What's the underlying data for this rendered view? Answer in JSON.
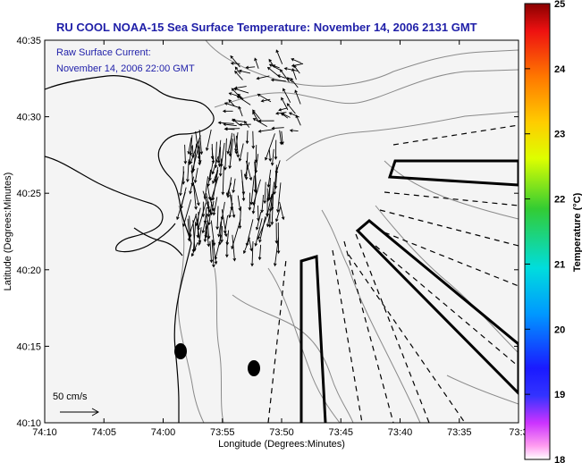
{
  "title": "RU COOL  NOAA-15  Sea Surface Temperature:  November 14, 2006 2131 GMT",
  "inset": {
    "line1": "Raw Surface Current:",
    "line2": "November 14, 2006 22:00 GMT"
  },
  "scale_label": "50 cm/s",
  "colorbar": {
    "label": "Temperature (°C)",
    "min": 18,
    "max": 25,
    "ticks": [
      "18",
      "19",
      "20",
      "21",
      "22",
      "23",
      "24",
      "25"
    ]
  },
  "chart_data": {
    "type": "map",
    "xlabel": "Longitude (Degrees:Minutes)",
    "ylabel": "Latitude (Degrees:Minutes)",
    "xticks": [
      "74:10",
      "74:05",
      "74:00",
      "73:55",
      "73:50",
      "73:45",
      "73:40",
      "73:35",
      "73:3"
    ],
    "yticks": [
      "40:35",
      "40:30",
      "40:25",
      "40:20",
      "40:15",
      "40:10"
    ],
    "xlim_minutes_west": [
      70,
      30
    ],
    "ylim_minutes_north": [
      10,
      35
    ]
  },
  "colors": {
    "title": "#1f1fa8",
    "land_line": "#000000",
    "bathymetry": "#8a8a8a",
    "map_background": "#f4f4f4"
  }
}
